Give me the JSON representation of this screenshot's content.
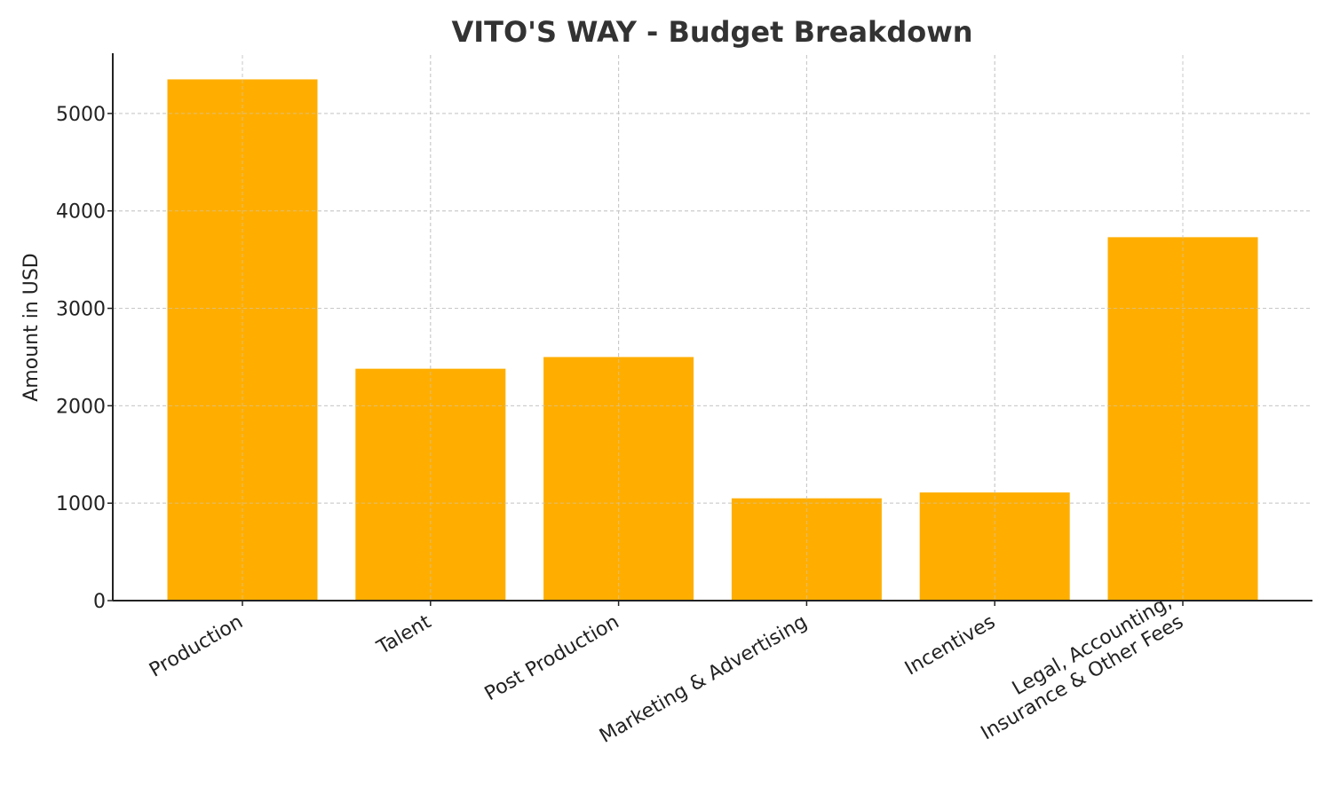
{
  "chart_data": {
    "type": "bar",
    "title": "VITO'S WAY - Budget Breakdown",
    "xlabel": "",
    "ylabel": "Amount in USD",
    "categories": [
      [
        "Production"
      ],
      [
        "Talent"
      ],
      [
        "Post Production"
      ],
      [
        "Marketing & Advertising"
      ],
      [
        "Incentives"
      ],
      [
        "Legal, Accounting,",
        "Insurance & Other Fees"
      ]
    ],
    "values": [
      5350,
      2380,
      2500,
      1050,
      1110,
      3730
    ],
    "ylim": [
      0,
      5600
    ],
    "yticks": [
      0,
      1000,
      2000,
      3000,
      4000,
      5000
    ],
    "bar_color": "#ffae00",
    "grid": true,
    "legend": "none"
  }
}
